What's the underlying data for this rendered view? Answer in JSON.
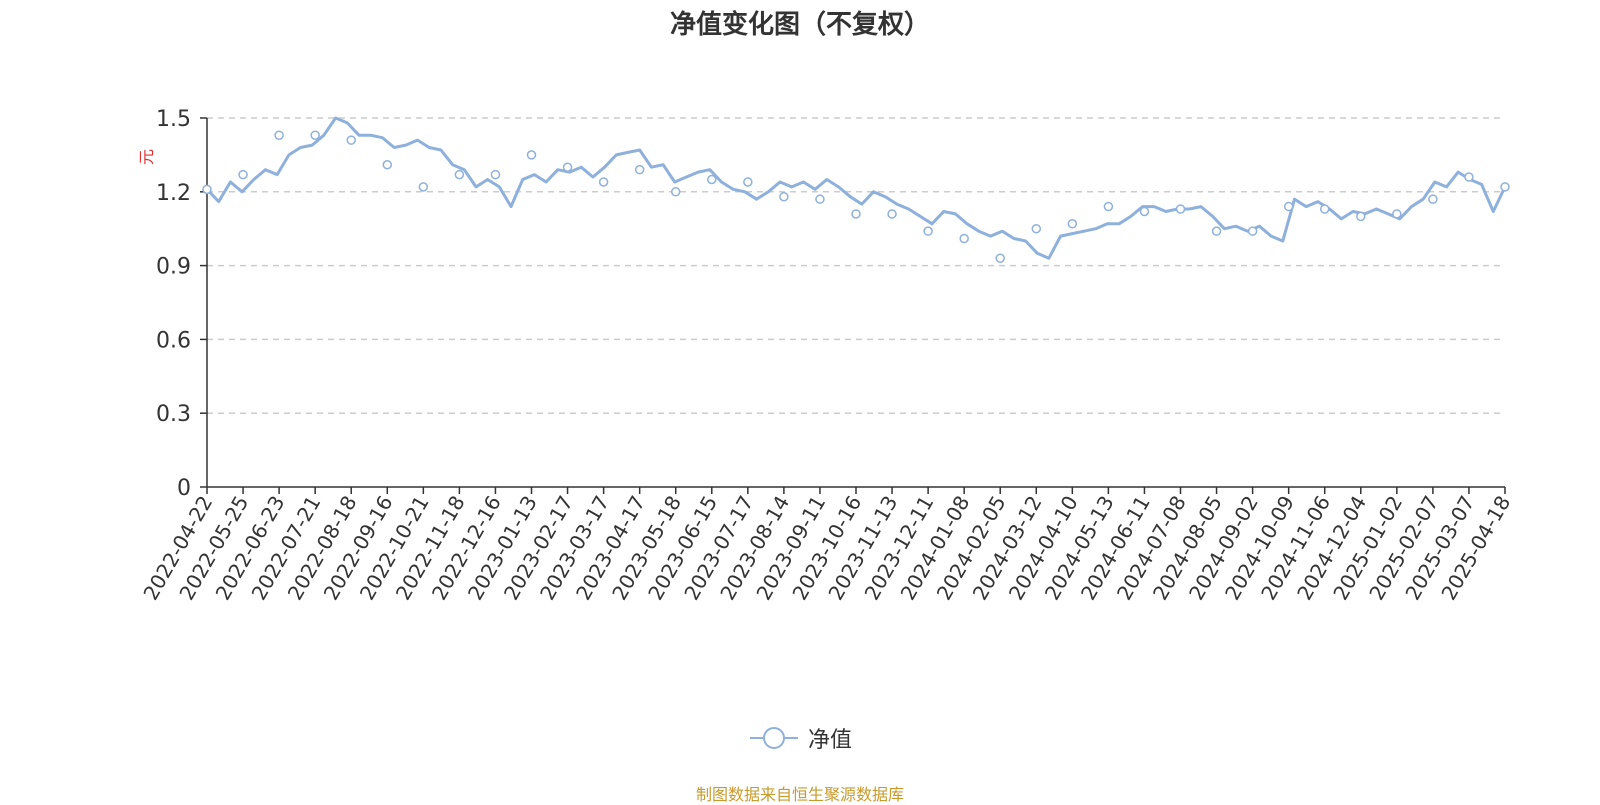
{
  "title": "净值变化图（不复权）",
  "source_note": "制图数据来自恒生聚源数据库",
  "colors": {
    "series": "#8eb0dc",
    "title": "#333333",
    "unit": "#e03030",
    "note": "#c89a2b",
    "grid": "#cccccc",
    "axis": "#333333"
  },
  "chart_data": {
    "type": "line",
    "title": "净值变化图（不复权）",
    "ylabel": "元",
    "ylim": [
      0,
      1.5
    ],
    "yticks": [
      0,
      0.3,
      0.6,
      0.9,
      1.2,
      1.5
    ],
    "grid": true,
    "legend_position": "bottom-center",
    "x_ticks": [
      "2022-04-22",
      "2022-05-25",
      "2022-06-23",
      "2022-07-21",
      "2022-08-18",
      "2022-09-16",
      "2022-10-21",
      "2022-11-18",
      "2022-12-16",
      "2023-01-13",
      "2023-02-17",
      "2023-03-17",
      "2023-04-17",
      "2023-05-18",
      "2023-06-15",
      "2023-07-17",
      "2023-08-14",
      "2023-09-11",
      "2023-10-16",
      "2023-11-13",
      "2023-12-11",
      "2024-01-08",
      "2024-02-05",
      "2024-03-12",
      "2024-04-10",
      "2024-05-13",
      "2024-06-11",
      "2024-07-08",
      "2024-08-05",
      "2024-09-02",
      "2024-10-09",
      "2024-11-06",
      "2024-12-04",
      "2025-01-02",
      "2025-02-07",
      "2025-03-07",
      "2025-04-18"
    ],
    "series": [
      {
        "name": "净值",
        "values": [
          1.21,
          1.27,
          1.43,
          1.43,
          1.41,
          1.31,
          1.22,
          1.27,
          1.27,
          1.35,
          1.3,
          1.24,
          1.29,
          1.2,
          1.25,
          1.24,
          1.18,
          1.17,
          1.11,
          1.11,
          1.04,
          1.01,
          0.93,
          1.05,
          1.07,
          1.14,
          1.12,
          1.13,
          1.04,
          1.04,
          1.14,
          1.13,
          1.1,
          1.11,
          1.17,
          1.26,
          1.22
        ],
        "detail": [
          1.21,
          1.16,
          1.24,
          1.2,
          1.25,
          1.29,
          1.27,
          1.35,
          1.38,
          1.39,
          1.43,
          1.5,
          1.48,
          1.43,
          1.43,
          1.42,
          1.38,
          1.39,
          1.41,
          1.38,
          1.37,
          1.31,
          1.29,
          1.22,
          1.25,
          1.22,
          1.14,
          1.25,
          1.27,
          1.24,
          1.29,
          1.28,
          1.3,
          1.26,
          1.3,
          1.35,
          1.36,
          1.37,
          1.3,
          1.31,
          1.24,
          1.26,
          1.28,
          1.29,
          1.24,
          1.21,
          1.2,
          1.17,
          1.2,
          1.24,
          1.22,
          1.24,
          1.21,
          1.25,
          1.22,
          1.18,
          1.15,
          1.2,
          1.18,
          1.15,
          1.13,
          1.1,
          1.07,
          1.12,
          1.11,
          1.07,
          1.04,
          1.02,
          1.04,
          1.01,
          1.0,
          0.95,
          0.93,
          1.02,
          1.03,
          1.04,
          1.05,
          1.07,
          1.07,
          1.1,
          1.14,
          1.14,
          1.12,
          1.13,
          1.13,
          1.14,
          1.1,
          1.05,
          1.06,
          1.04,
          1.06,
          1.02,
          1.0,
          1.17,
          1.14,
          1.16,
          1.13,
          1.09,
          1.12,
          1.11,
          1.13,
          1.11,
          1.09,
          1.14,
          1.17,
          1.24,
          1.22,
          1.28,
          1.25,
          1.23,
          1.12,
          1.22
        ]
      }
    ]
  }
}
